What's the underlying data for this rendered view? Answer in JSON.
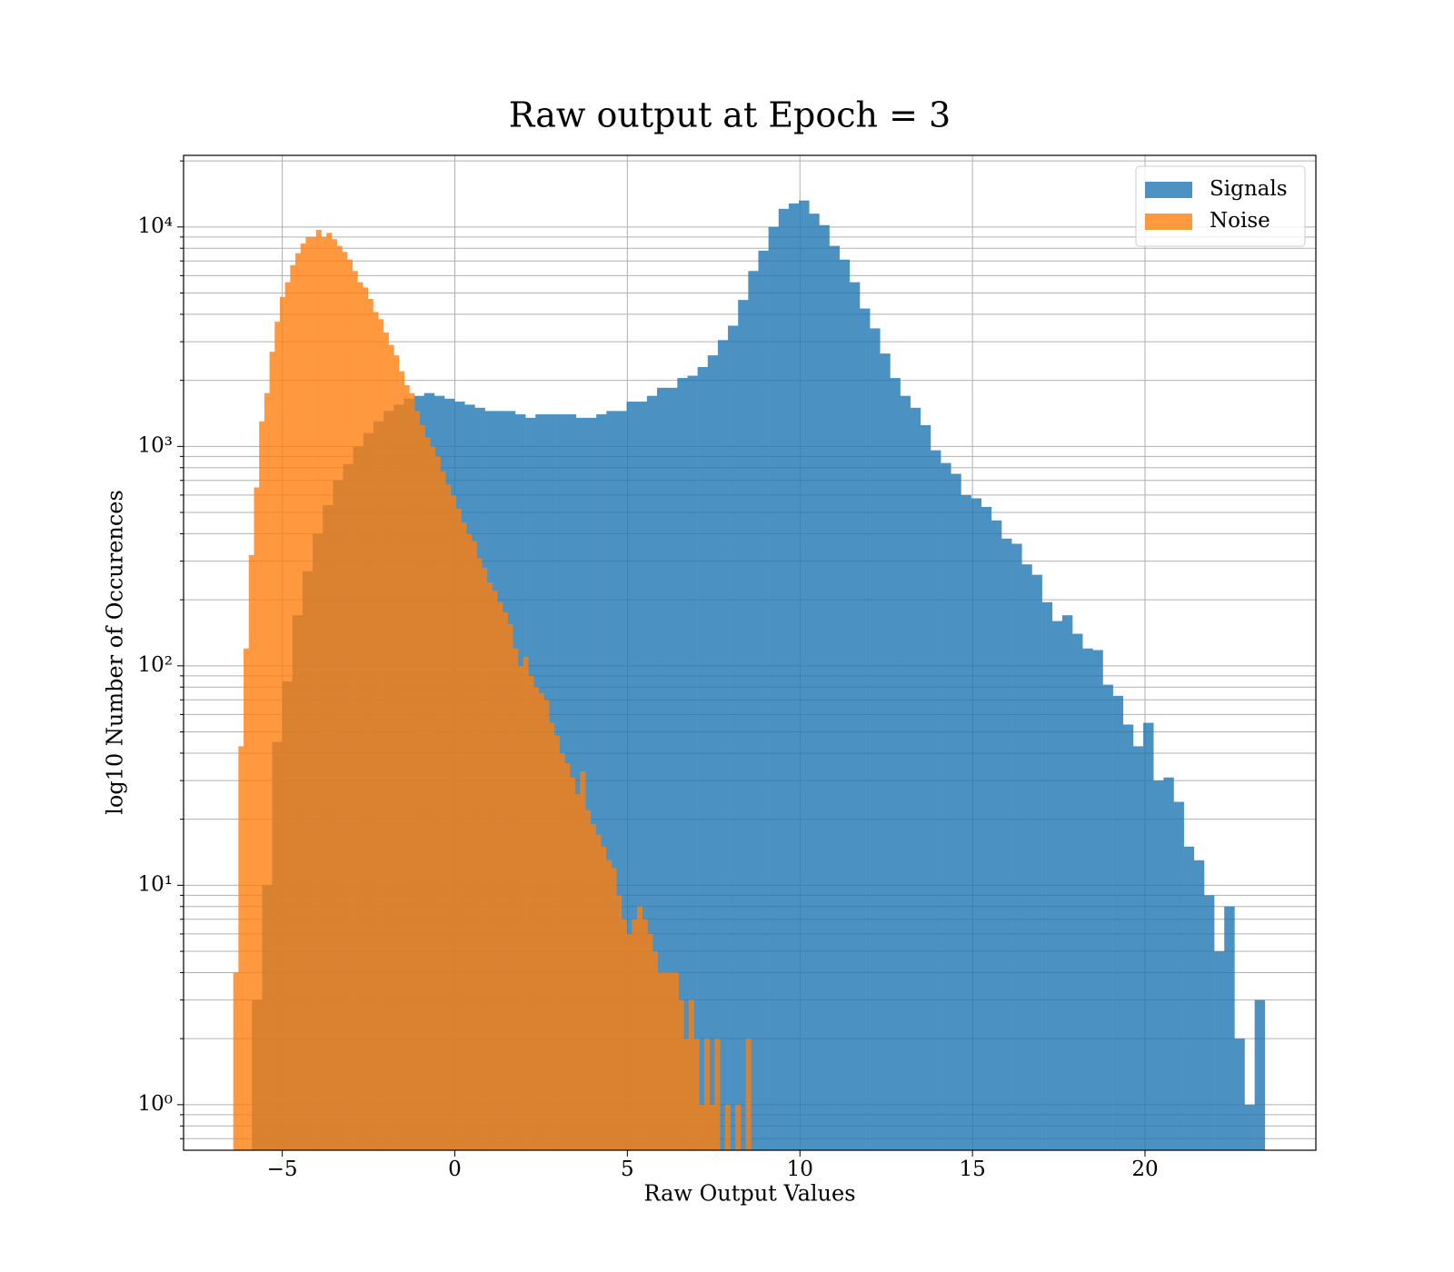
{
  "chart_data": {
    "type": "histogram",
    "title": "Raw output at Epoch = 3",
    "xlabel": "Raw Output Values",
    "ylabel": "log10 Number of Occurences",
    "xlim": [
      -7.86,
      24.95
    ],
    "ylim": [
      0.62,
      21200
    ],
    "log_y": true,
    "grid": true,
    "legend": "upper right",
    "xticks": [
      {
        "value": -5,
        "label": "−5"
      },
      0,
      5,
      10,
      15,
      20
    ],
    "yticks": [
      {
        "value": 1,
        "label": "10⁰"
      },
      {
        "value": 10,
        "label": "10¹"
      },
      {
        "value": 100,
        "label": "10²"
      },
      {
        "value": 1000,
        "label": "10³"
      },
      {
        "value": 10000,
        "label": "10⁴"
      }
    ],
    "minor_yticks": [
      0.7,
      0.8,
      0.9,
      2,
      3,
      4,
      5,
      6,
      7,
      8,
      9,
      20,
      30,
      40,
      50,
      60,
      70,
      80,
      90,
      200,
      300,
      400,
      500,
      600,
      700,
      800,
      900,
      2000,
      3000,
      4000,
      5000,
      6000,
      7000,
      8000,
      9000,
      20000
    ],
    "series": [
      {
        "name": "Signals",
        "color": "#1f77b4",
        "bins": [
          -5.88,
          -5.5865,
          -5.293,
          -4.9995,
          -4.706,
          -4.4125,
          -4.119,
          -3.8255,
          -3.532,
          -3.2385,
          -2.945,
          -2.6515,
          -2.358,
          -2.0645,
          -1.771,
          -1.4775,
          -1.184,
          -0.8905,
          -0.597,
          -0.3035,
          -0.01,
          0.2835,
          0.577,
          0.8705,
          1.164,
          1.4575,
          1.751,
          2.0445,
          2.338,
          2.6315,
          2.925,
          3.2185,
          3.512,
          3.8055,
          4.099,
          4.3925,
          4.686,
          4.9795,
          5.273,
          5.5665,
          5.86,
          6.1535,
          6.447,
          6.7405,
          7.034,
          7.3275,
          7.621,
          7.9145,
          8.208,
          8.5015,
          8.795,
          9.0885,
          9.382,
          9.6755,
          9.969,
          10.2625,
          10.556,
          10.8495,
          11.143,
          11.4365,
          11.73,
          12.0235,
          12.317,
          12.6105,
          12.904,
          13.1975,
          13.491,
          13.7845,
          14.078,
          14.3715,
          14.665,
          14.9585,
          15.252,
          15.5455,
          15.839,
          16.1325,
          16.426,
          16.7195,
          17.013,
          17.3065,
          17.6,
          17.8935,
          18.187,
          18.4805,
          18.774,
          19.0675,
          19.361,
          19.6545,
          19.948,
          20.2415,
          20.535,
          20.8285,
          21.122,
          21.4155,
          21.709,
          22.0025,
          22.296,
          22.5895,
          22.883,
          23.1765,
          23.47
        ],
        "values": [
          3,
          10,
          45,
          85,
          170,
          270,
          400,
          540,
          700,
          830,
          1000,
          1150,
          1300,
          1450,
          1550,
          1650,
          1700,
          1750,
          1700,
          1650,
          1600,
          1550,
          1500,
          1450,
          1450,
          1450,
          1400,
          1350,
          1400,
          1400,
          1400,
          1400,
          1350,
          1350,
          1400,
          1450,
          1450,
          1600,
          1600,
          1700,
          1850,
          1850,
          2050,
          2100,
          2300,
          2600,
          3050,
          3550,
          4650,
          6300,
          7800,
          10000,
          12100,
          12800,
          13200,
          11500,
          10200,
          8200,
          7100,
          5600,
          4250,
          3450,
          2650,
          2050,
          1700,
          1500,
          1250,
          960,
          840,
          750,
          600,
          580,
          530,
          460,
          380,
          360,
          290,
          260,
          195,
          160,
          170,
          140,
          120,
          118,
          82,
          73,
          54,
          43,
          55,
          30,
          31,
          24,
          15,
          13,
          9,
          5,
          8,
          2,
          1,
          3
        ]
      },
      {
        "name": "Noise",
        "color": "#ff7f0e",
        "bins": [
          -6.42,
          -6.27,
          -6.12,
          -5.97,
          -5.82,
          -5.67,
          -5.52,
          -5.37,
          -5.22,
          -5.07,
          -4.92,
          -4.77,
          -4.62,
          -4.47,
          -4.32,
          -4.17,
          -4.02,
          -3.87,
          -3.72,
          -3.57,
          -3.42,
          -3.27,
          -3.12,
          -2.97,
          -2.82,
          -2.67,
          -2.52,
          -2.37,
          -2.22,
          -2.07,
          -1.92,
          -1.77,
          -1.62,
          -1.47,
          -1.32,
          -1.17,
          -1.02,
          -0.87,
          -0.72,
          -0.57,
          -0.42,
          -0.27,
          -0.12,
          0.03,
          0.18,
          0.33,
          0.48,
          0.63,
          0.78,
          0.93,
          1.08,
          1.23,
          1.38,
          1.53,
          1.68,
          1.83,
          1.98,
          2.13,
          2.28,
          2.43,
          2.58,
          2.73,
          2.88,
          3.03,
          3.18,
          3.33,
          3.48,
          3.63,
          3.78,
          3.93,
          4.08,
          4.23,
          4.38,
          4.53,
          4.68,
          4.83,
          4.98,
          5.13,
          5.28,
          5.43,
          5.58,
          5.73,
          5.88,
          6.03,
          6.18,
          6.33,
          6.48,
          6.63,
          6.78,
          6.93,
          7.08,
          7.23,
          7.38,
          7.53,
          7.68,
          7.83,
          7.98,
          8.13,
          8.28,
          8.43,
          8.58
        ],
        "values": [
          4,
          43,
          120,
          320,
          650,
          1300,
          1750,
          2700,
          3700,
          4800,
          5600,
          6700,
          7600,
          8400,
          9000,
          9000,
          9700,
          9000,
          9400,
          8800,
          8200,
          7700,
          7100,
          6300,
          5600,
          5300,
          4700,
          4100,
          3800,
          3300,
          2900,
          2600,
          2200,
          1900,
          1750,
          1450,
          1250,
          1100,
          1000,
          900,
          770,
          670,
          600,
          520,
          450,
          400,
          370,
          310,
          280,
          240,
          220,
          195,
          175,
          155,
          120,
          100,
          110,
          90,
          80,
          75,
          70,
          55,
          48,
          40,
          36,
          31,
          26,
          33,
          22,
          19,
          17,
          15,
          13,
          12,
          9,
          7,
          6,
          7,
          8,
          7,
          6,
          5,
          4,
          4,
          4,
          4,
          3,
          2,
          3,
          2,
          1,
          2,
          1,
          2,
          0,
          1,
          0,
          1,
          0,
          2
        ]
      }
    ]
  }
}
